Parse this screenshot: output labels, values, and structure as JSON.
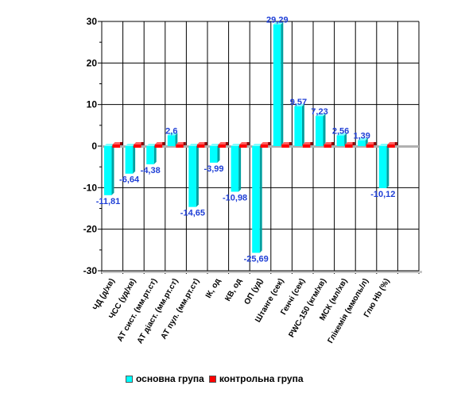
{
  "chart_data": {
    "type": "bar",
    "categories": [
      "ЧД (д/хв)",
      "ЧСС (уд/хв)",
      "АТ сист. (мм.рт.ст)",
      "АТ діаст. (мм.рт.ст)",
      "АТ пул. (мм.рт.ст)",
      "ІК, од",
      "КВ, од",
      "ОП (уд)",
      "Штанге (сек)",
      "Генчі (сек)",
      "PWC-150 (кгм/хв)",
      "МСК (мл/хв)",
      "Глікемія (ммоль/л)",
      "Глю Hb (%)"
    ],
    "series": [
      {
        "name": "основна група",
        "color": "#00ffff",
        "values": [
          -11.81,
          -6.64,
          -4.38,
          2.6,
          -14.65,
          -3.99,
          -10.98,
          -25.69,
          29.29,
          9.57,
          7.23,
          2.56,
          1.39,
          -10.12
        ],
        "labels": [
          "-11,81",
          "-6,64",
          "-4,38",
          "2,6",
          "-14,65",
          "-3,99",
          "-10,98",
          "-25,69",
          "29,29",
          "9,57",
          "7,23",
          "2,56",
          "1,39",
          "-10,12"
        ]
      },
      {
        "name": "контрольна група",
        "color": "#ff0000",
        "values": [
          0,
          0,
          0,
          0,
          0,
          0,
          0,
          0,
          0,
          0,
          0,
          0,
          0,
          0
        ]
      }
    ],
    "yticks": [
      "30",
      "20",
      "10",
      "0",
      "-10",
      "-20",
      "-30"
    ],
    "ylim": [
      -30,
      30
    ],
    "grid": true,
    "legend_position": "bottom"
  }
}
